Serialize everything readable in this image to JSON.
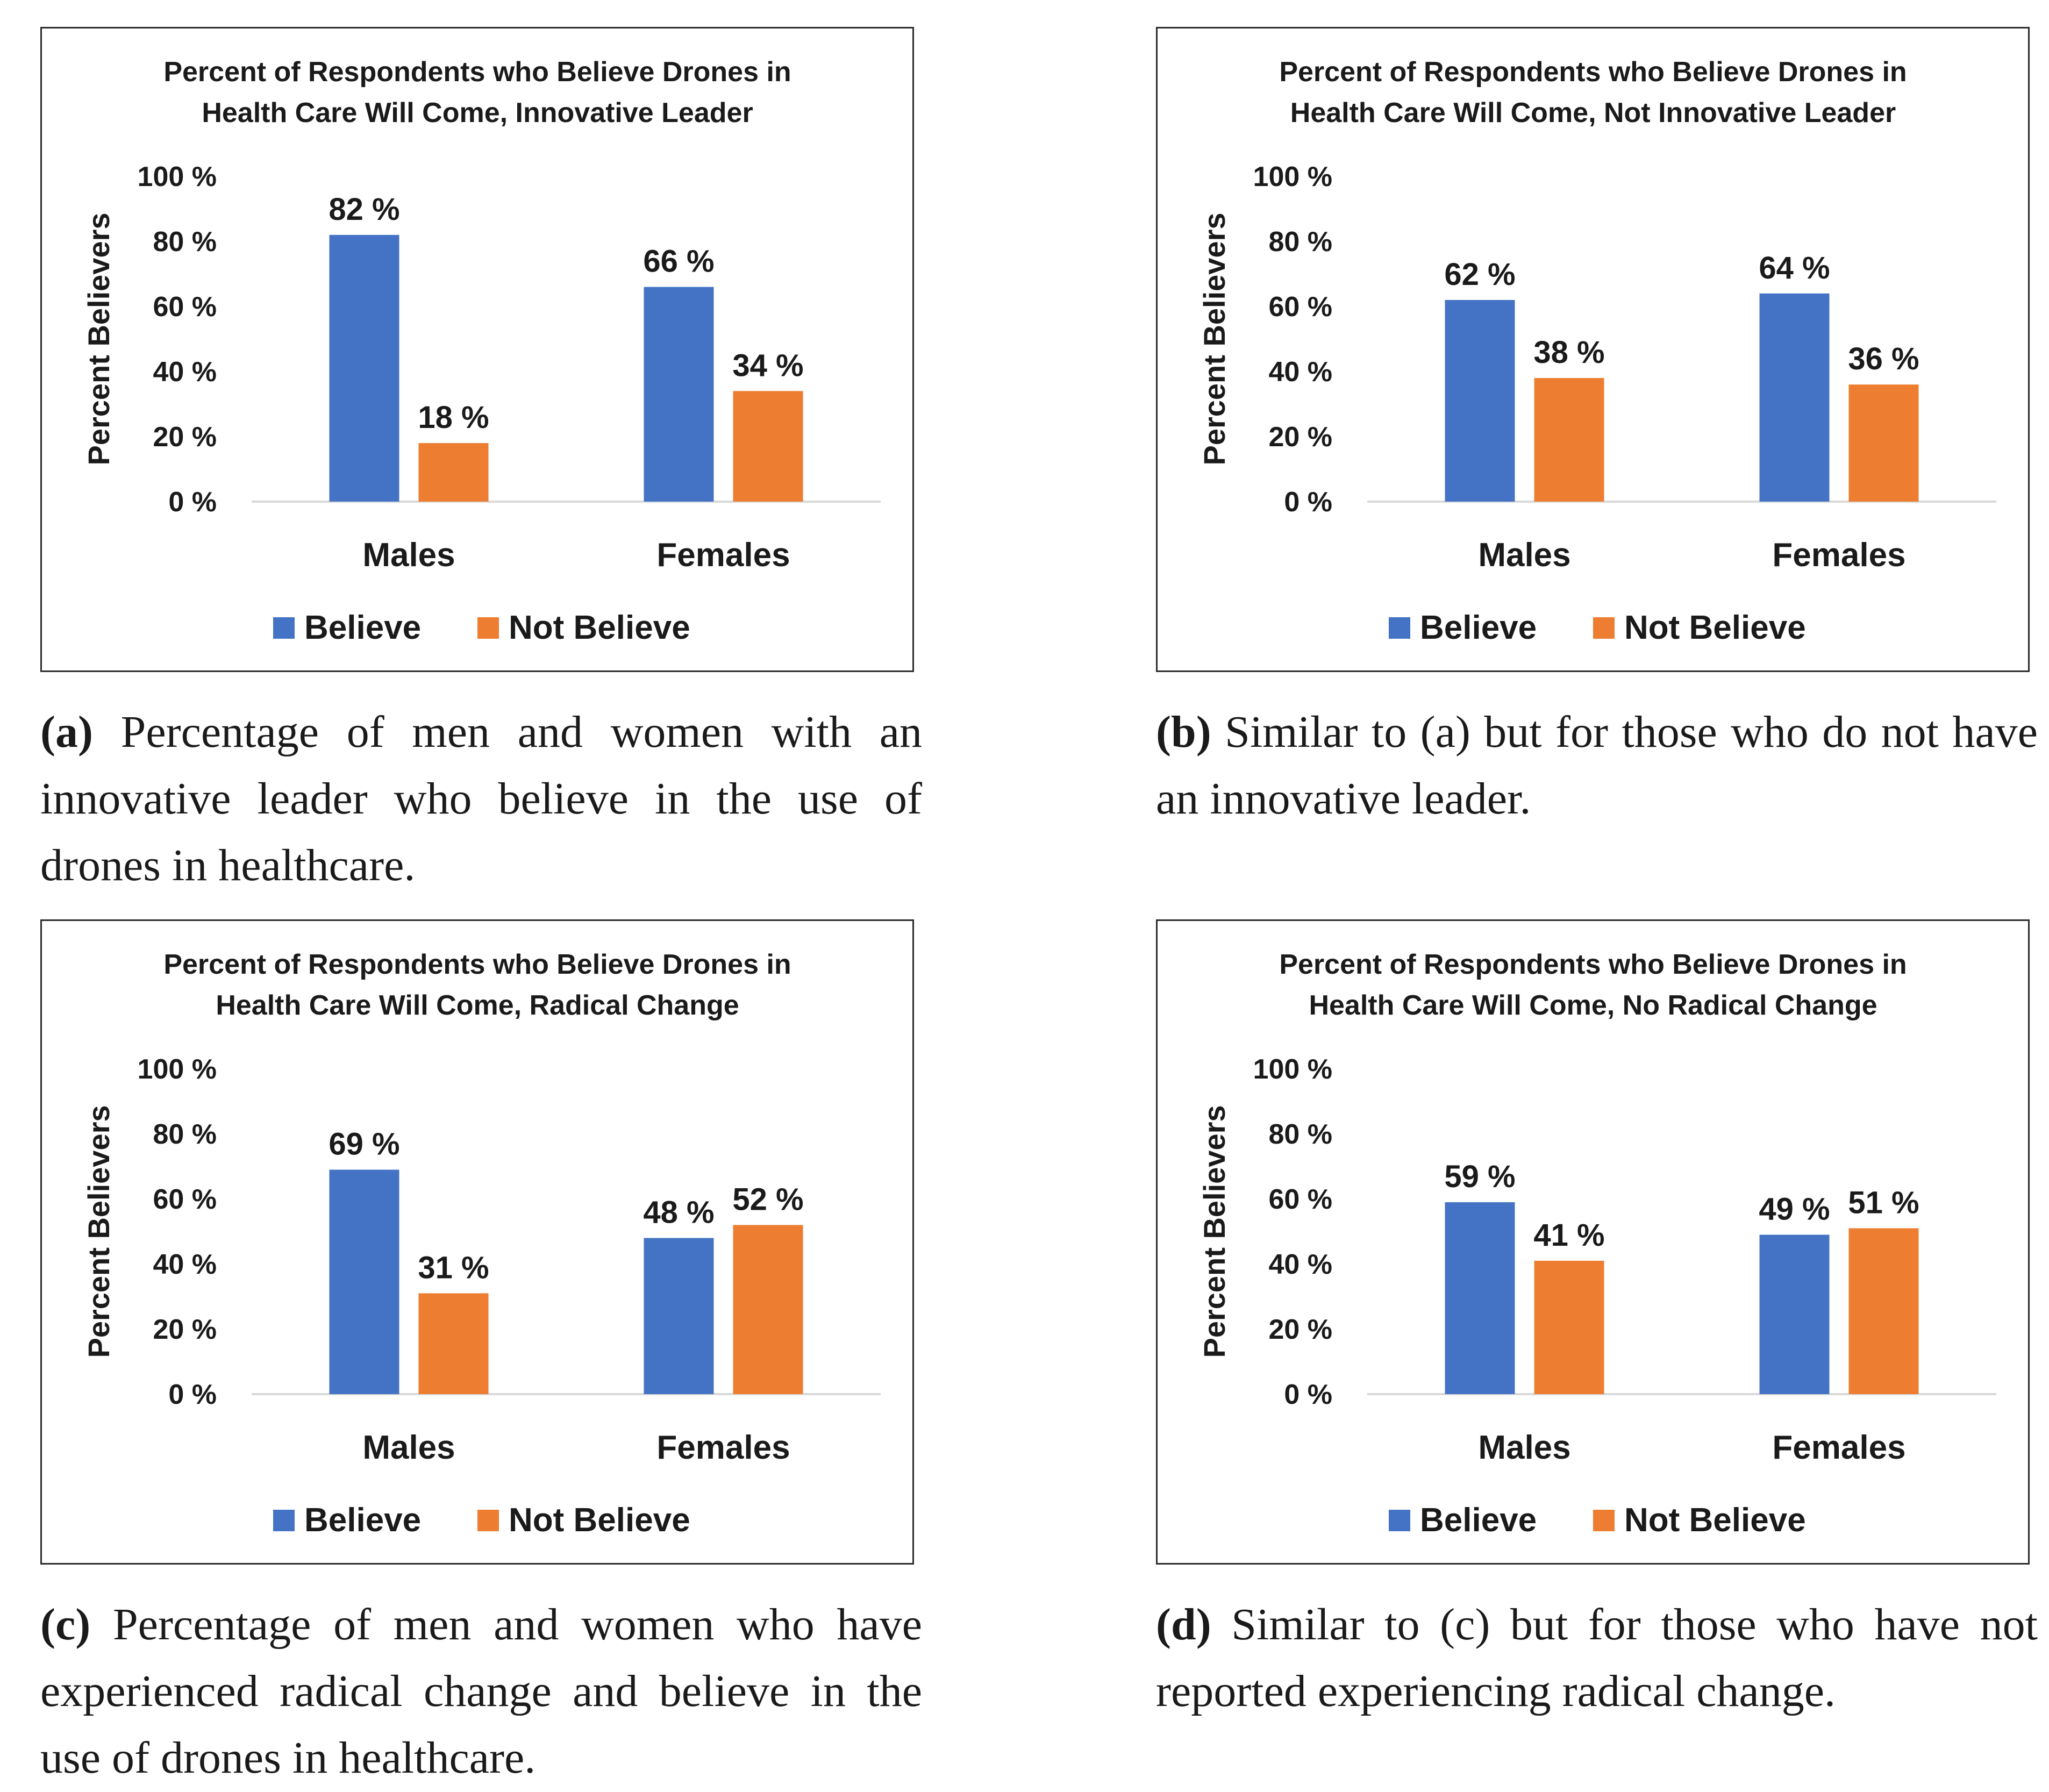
{
  "colors": {
    "believe": "#4472C4",
    "not_believe": "#ED7D31",
    "axis": "#d9d9d9"
  },
  "chart_data": [
    {
      "type": "bar",
      "title_lines": [
        "Percent of Respondents who Believe Drones in",
        "Health Care Will Come, Innovative Leader"
      ],
      "ylabel": "Percent Believers",
      "ylim": [
        0,
        100
      ],
      "yticks": [
        "0 %",
        "20 %",
        "40 %",
        "60 %",
        "80 %",
        "100 %"
      ],
      "categories": [
        "Males",
        "Females"
      ],
      "series": [
        {
          "name": "Believe",
          "values": [
            82,
            66
          ],
          "labels": [
            "82 %",
            "66 %"
          ]
        },
        {
          "name": "Not Believe",
          "values": [
            18,
            34
          ],
          "labels": [
            "18 %",
            "34 %"
          ]
        }
      ],
      "legend_position": "bottom",
      "caption_tag": "(a)",
      "caption_text": "Percentage of men and women with an innovative leader who believe in the use of drones in healthcare."
    },
    {
      "type": "bar",
      "title_lines": [
        "Percent of Respondents who Believe Drones in",
        "Health Care Will Come, Not Innovative Leader"
      ],
      "ylabel": "Percent Believers",
      "ylim": [
        0,
        100
      ],
      "yticks": [
        "0 %",
        "20 %",
        "40 %",
        "60 %",
        "80 %",
        "100 %"
      ],
      "categories": [
        "Males",
        "Females"
      ],
      "series": [
        {
          "name": "Believe",
          "values": [
            62,
            64
          ],
          "labels": [
            "62 %",
            "64 %"
          ]
        },
        {
          "name": "Not Believe",
          "values": [
            38,
            36
          ],
          "labels": [
            "38 %",
            "36 %"
          ]
        }
      ],
      "legend_position": "bottom",
      "caption_tag": "(b)",
      "caption_text": "Similar to (a) but for those who do not have an innovative leader."
    },
    {
      "type": "bar",
      "title_lines": [
        "Percent of Respondents who Believe Drones in",
        "Health Care Will Come, Radical Change"
      ],
      "ylabel": "Percent Believers",
      "ylim": [
        0,
        100
      ],
      "yticks": [
        "0 %",
        "20 %",
        "40 %",
        "60 %",
        "80 %",
        "100 %"
      ],
      "categories": [
        "Males",
        "Females"
      ],
      "series": [
        {
          "name": "Believe",
          "values": [
            69,
            48
          ],
          "labels": [
            "69 %",
            "48 %"
          ]
        },
        {
          "name": "Not Believe",
          "values": [
            31,
            52
          ],
          "labels": [
            "31 %",
            "52 %"
          ]
        }
      ],
      "legend_position": "bottom",
      "caption_tag": "(c)",
      "caption_text": "Percentage of men and women who have experienced radical change and believe in the use of drones in healthcare."
    },
    {
      "type": "bar",
      "title_lines": [
        "Percent of Respondents who Believe Drones in",
        "Health Care Will Come, No Radical Change"
      ],
      "ylabel": "Percent Believers",
      "ylim": [
        0,
        100
      ],
      "yticks": [
        "0 %",
        "20 %",
        "40 %",
        "60 %",
        "80 %",
        "100 %"
      ],
      "categories": [
        "Males",
        "Females"
      ],
      "series": [
        {
          "name": "Believe",
          "values": [
            59,
            49
          ],
          "labels": [
            "59 %",
            "49 %"
          ]
        },
        {
          "name": "Not Believe",
          "values": [
            41,
            51
          ],
          "labels": [
            "41 %",
            "51 %"
          ]
        }
      ],
      "legend_position": "bottom",
      "caption_tag": "(d)",
      "caption_text": "Similar to (c) but for those who have not reported experiencing radical change."
    }
  ]
}
